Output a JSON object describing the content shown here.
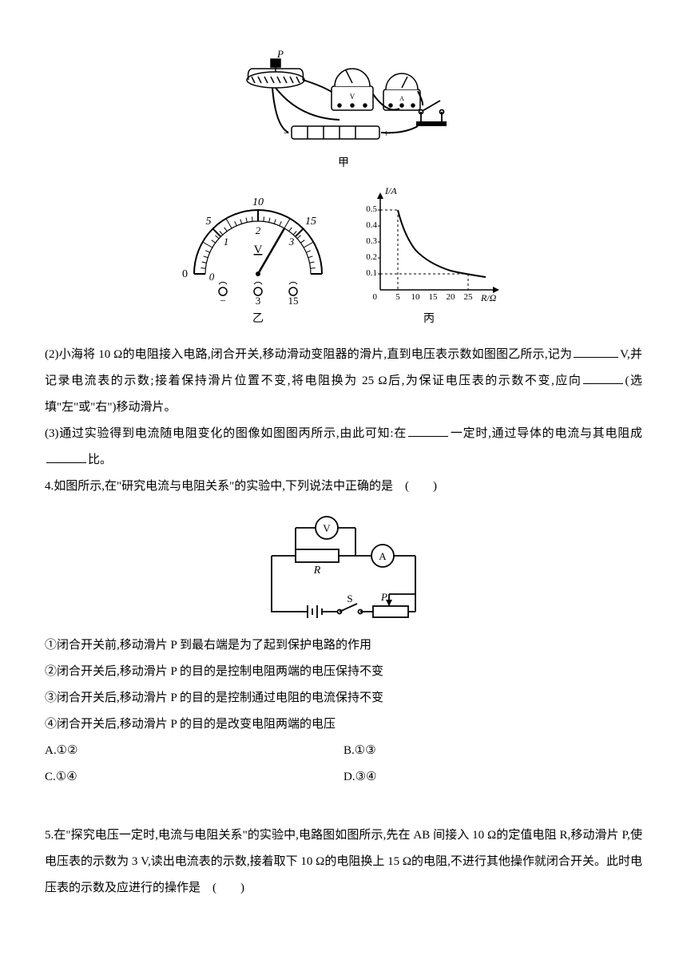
{
  "figures": {
    "circuit_photo": {
      "label": "甲",
      "rheostat_label": "P"
    },
    "voltmeter": {
      "label": "乙",
      "outer_scale": [
        "0",
        "5",
        "10",
        "15"
      ],
      "inner_scale": [
        "0",
        "1",
        "2",
        "3"
      ],
      "unit": "V",
      "terminals": [
        "−",
        "3",
        "15"
      ],
      "needle_value": 2,
      "needle_max": 3
    },
    "graph": {
      "label": "丙",
      "xlabel": "R/Ω",
      "ylabel": "I/A",
      "x_ticks": [
        "5",
        "10",
        "15",
        "20",
        "25"
      ],
      "y_ticks": [
        "0.1",
        "0.2",
        "0.3",
        "0.4",
        "0.5"
      ],
      "xlim": [
        0,
        30
      ],
      "ylim": [
        0,
        0.55
      ],
      "points": [
        [
          5,
          0.5
        ],
        [
          10,
          0.25
        ],
        [
          15,
          0.17
        ],
        [
          20,
          0.125
        ],
        [
          25,
          0.1
        ]
      ],
      "dashed_refs": [
        [
          5,
          0.5
        ],
        [
          25,
          0.1
        ]
      ]
    },
    "schematic": {
      "label_R": "R",
      "label_S": "S",
      "label_P": "P",
      "voltmeter_label": "V",
      "ammeter_label": "A"
    }
  },
  "q2": {
    "text_a": "(2)小海将 10 Ω的电阻接入电路,闭合开关,移动滑动变阻器的滑片,直到电压表示数如图图乙所示,记为",
    "text_b": "V,并记录电流表的示数;接着保持滑片位置不变,将电阻换为 25 Ω后,为保证电压表的示数不变,应向",
    "text_c": "(选填\"左\"或\"右\")移动滑片。"
  },
  "q3": {
    "text_a": "(3)通过实验得到电流随电阻变化的图像如图图丙所示,由此可知:在",
    "text_b": "一定时,通过导体的电流与其电阻成",
    "text_c": "比。"
  },
  "q4": {
    "stem": "4.如图所示,在\"研究电流与电阻关系\"的实验中,下列说法中正确的是",
    "paren": "(　　)",
    "s1": "①闭合开关前,移动滑片 P 到最右端是为了起到保护电路的作用",
    "s2": "②闭合开关后,移动滑片 P 的目的是控制电阻两端的电压保持不变",
    "s3": "③闭合开关后,移动滑片 P 的目的是控制通过电阻的电流保持不变",
    "s4": "④闭合开关后,移动滑片 P 的目的是改变电阻两端的电压",
    "optA": "A.①②",
    "optB": "B.①③",
    "optC": "C.①④",
    "optD": "D.③④"
  },
  "q5": {
    "text_a": "5.在\"探究电压一定时,电流与电阻关系\"的实验中,电路图如图所示,先在 AB 间接入 10 Ω的定值电阻 R,移动滑片 P,使电压表的示数为 3 V,读出电流表的示数,接着取下 10 Ω的电阻换上 15 Ω的电阻,不进行其他操作就闭合开关。此时电压表的示数及应进行的操作是",
    "paren": "(　　)"
  }
}
